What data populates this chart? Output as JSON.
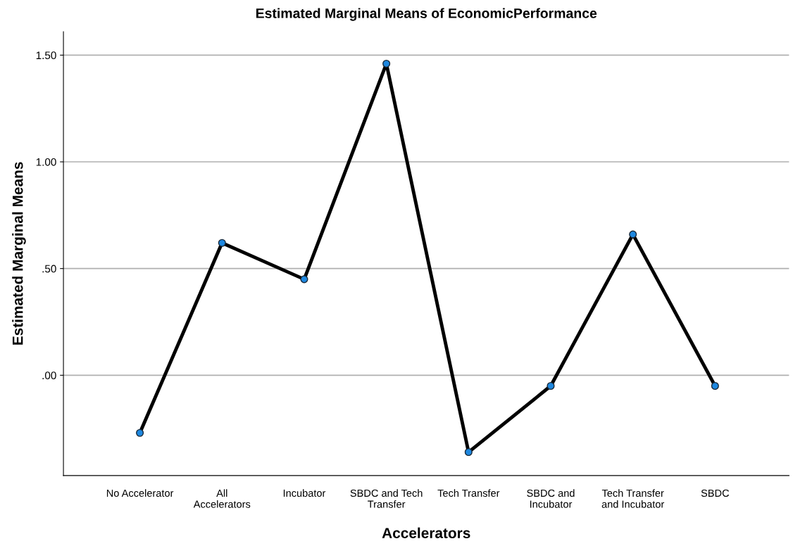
{
  "chart_data": {
    "type": "line",
    "title": "Estimated Marginal Means of EconomicPerformance",
    "xlabel": "Accelerators",
    "ylabel": "Estimated Marginal Means",
    "categories": [
      "No Accelerator",
      "All\nAccelerators",
      "Incubator",
      "SBDC and Tech\nTransfer",
      "Tech Transfer",
      "SBDC and\nIncubator",
      "Tech Transfer\nand Incubator",
      "SBDC"
    ],
    "series": [
      {
        "color": "#000000",
        "values": [
          -0.27,
          0.62,
          0.45,
          1.46,
          -0.36,
          -0.05,
          0.66,
          -0.05
        ]
      }
    ],
    "marker": "circle",
    "line_style": "solid",
    "ylim": [
      -0.47,
      1.61
    ],
    "yticks": [
      {
        "value": 0,
        "label": ".00"
      },
      {
        "value": 0.5,
        "label": ".50"
      },
      {
        "value": 1.0,
        "label": "1.00"
      },
      {
        "value": 1.5,
        "label": "1.50"
      }
    ],
    "grid": "y"
  }
}
